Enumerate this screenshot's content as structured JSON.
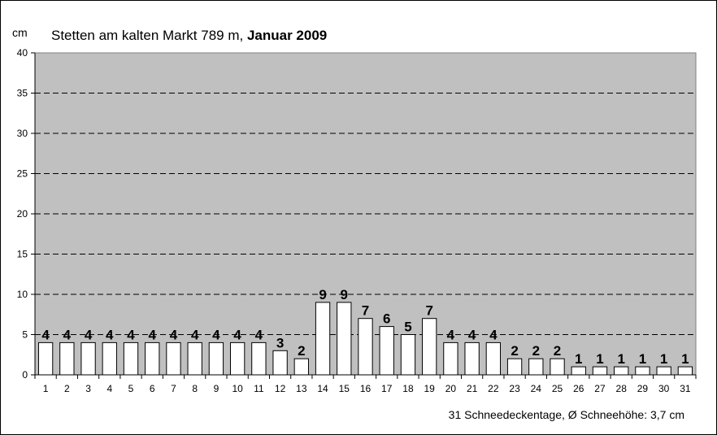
{
  "chart_data": {
    "type": "bar",
    "title_normal": "Stetten am kalten Markt  789 m, ",
    "title_bold": "Januar 2009",
    "ylabel": "cm",
    "xlabel": "",
    "ylim": [
      0,
      40
    ],
    "yticks": [
      0,
      5,
      10,
      15,
      20,
      25,
      30,
      35,
      40
    ],
    "grid": true,
    "categories": [
      "1",
      "2",
      "3",
      "4",
      "5",
      "6",
      "7",
      "8",
      "9",
      "10",
      "11",
      "12",
      "13",
      "14",
      "15",
      "16",
      "17",
      "18",
      "19",
      "20",
      "21",
      "22",
      "23",
      "24",
      "25",
      "26",
      "27",
      "28",
      "29",
      "30",
      "31"
    ],
    "values": [
      4,
      4,
      4,
      4,
      4,
      4,
      4,
      4,
      4,
      4,
      4,
      3,
      2,
      9,
      9,
      7,
      6,
      5,
      7,
      4,
      4,
      4,
      2,
      2,
      2,
      1,
      1,
      1,
      1,
      1,
      1
    ],
    "footer": "31 Schneedeckentage,  Ø Schneehöhe:  3,7 cm",
    "colors": {
      "plot_background": "#c0c0c0",
      "bar_fill": "#ffffff",
      "bar_stroke": "#000000",
      "grid": "#000000"
    }
  }
}
